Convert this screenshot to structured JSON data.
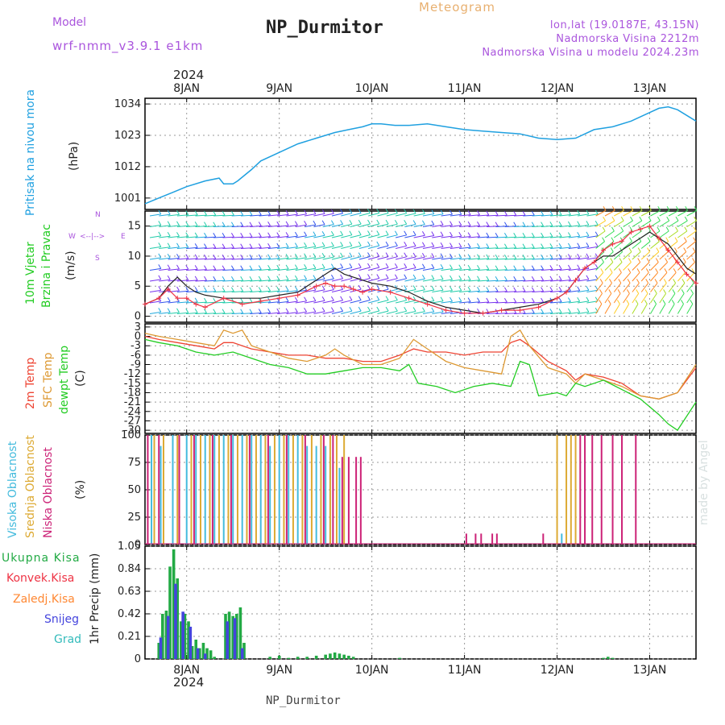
{
  "header": {
    "model_label": "Model",
    "model_name": "wrf-nmm_v3.9.1  e1km",
    "title": "NP_Durmitor",
    "meteogram_label": "Meteogram",
    "lonlat": "lon,lat (19.0187E, 43.15N)",
    "elevation": "Nadmorska Visina 2212m",
    "model_elevation": "Nadmorska Visina u modelu 2024.23m"
  },
  "footer": {
    "location": "NP_Durmitor",
    "credit": "made by Angel"
  },
  "colors": {
    "pressure": "#1fa0e0",
    "wind_speed": "#222222",
    "gust": "#ee3344",
    "t2m": "#ee4433",
    "sfc_temp": "#dd9933",
    "dewpt": "#22cc22",
    "cloud_high": "#44bbdd",
    "cloud_mid": "#ddaa33",
    "cloud_low": "#cc2277",
    "precip_total": "#22aa44",
    "precip_conv": "#ee3344",
    "precip_frz": "#ff8833",
    "precip_snow": "#4444dd",
    "precip_hail": "#33bbbb"
  },
  "chart_data": [
    {
      "type": "line",
      "panel": "pressure",
      "ylabel": [
        "Pritisak na nivou mora",
        "(hPa)"
      ],
      "yticks": [
        1001,
        1012,
        1023,
        1034
      ],
      "ylim": [
        997,
        1036
      ],
      "xlim": [
        7.55,
        13.5
      ],
      "xticks": [
        "8JAN",
        "9JAN",
        "10JAN",
        "11JAN",
        "12JAN",
        "13JAN"
      ],
      "xticks_pos": [
        8,
        9,
        10,
        11,
        12,
        13
      ],
      "year": "2024",
      "series": [
        {
          "x": [
            7.55,
            7.7,
            7.85,
            8.0,
            8.2,
            8.35,
            8.4,
            8.5,
            8.55,
            8.7,
            8.8,
            9.0,
            9.2,
            9.4,
            9.6,
            9.75,
            9.9,
            10.0,
            10.1,
            10.25,
            10.4,
            10.6,
            10.8,
            11.0,
            11.2,
            11.4,
            11.6,
            11.8,
            12.0,
            12.2,
            12.4,
            12.6,
            12.8,
            13.0,
            13.1,
            13.2,
            13.3,
            13.5
          ],
          "y": [
            999,
            1001,
            1003,
            1005,
            1007,
            1008,
            1006,
            1006,
            1007,
            1011,
            1014,
            1017,
            1020,
            1022,
            1024,
            1025,
            1026,
            1027,
            1027,
            1026.5,
            1026.5,
            1027,
            1026,
            1025,
            1024.5,
            1024,
            1023.5,
            1022,
            1021.5,
            1022,
            1025,
            1026,
            1028,
            1031,
            1032.5,
            1033,
            1032,
            1028
          ]
        }
      ]
    },
    {
      "type": "line",
      "panel": "wind",
      "ylabel": [
        "10m Vjetar",
        "Brzina i Pravac",
        "(m/s)"
      ],
      "compass": {
        "n": "N",
        "s": "S",
        "e": "E",
        "w": "W"
      },
      "yticks": [
        0,
        5,
        10,
        15
      ],
      "ylim": [
        -1,
        17.5
      ],
      "xlim": [
        7.55,
        13.5
      ],
      "xticks_pos": [
        8,
        9,
        10,
        11,
        12,
        13
      ],
      "series": [
        {
          "name": "speed",
          "x": [
            7.55,
            7.7,
            7.8,
            7.9,
            8.0,
            8.1,
            8.2,
            8.4,
            8.6,
            8.8,
            9.0,
            9.2,
            9.4,
            9.5,
            9.6,
            9.7,
            9.8,
            9.9,
            10.0,
            10.2,
            10.4,
            10.6,
            10.8,
            11.0,
            11.2,
            11.4,
            11.6,
            11.8,
            12.0,
            12.1,
            12.2,
            12.3,
            12.4,
            12.5,
            12.6,
            12.7,
            12.8,
            12.9,
            13.0,
            13.1,
            13.2,
            13.3,
            13.4,
            13.5
          ],
          "y": [
            2,
            3,
            5,
            6.5,
            5,
            4,
            3.5,
            3,
            3,
            3,
            3.5,
            4,
            6,
            7,
            8,
            7,
            6.5,
            6,
            5.5,
            5,
            4,
            2.5,
            1.5,
            1,
            0.5,
            1,
            1.5,
            2,
            3,
            4,
            6,
            8,
            9,
            10,
            10,
            11,
            12,
            13,
            14,
            13,
            12,
            10,
            8,
            7
          ]
        },
        {
          "name": "gust",
          "x": [
            7.55,
            7.7,
            7.8,
            7.9,
            8.0,
            8.1,
            8.2,
            8.4,
            8.6,
            8.8,
            9.0,
            9.2,
            9.4,
            9.5,
            9.6,
            9.7,
            9.8,
            9.9,
            10.0,
            10.2,
            10.4,
            10.6,
            10.8,
            11.0,
            11.2,
            11.4,
            11.6,
            11.8,
            12.0,
            12.1,
            12.2,
            12.3,
            12.4,
            12.5,
            12.6,
            12.7,
            12.8,
            12.9,
            13.0,
            13.1,
            13.2,
            13.3,
            13.4,
            13.5
          ],
          "y": [
            2,
            3,
            4.5,
            3,
            3,
            2,
            1.5,
            3,
            2,
            2.5,
            3,
            3.5,
            5,
            5.5,
            5,
            5,
            4.5,
            4,
            4.5,
            4,
            3,
            2,
            1,
            0.5,
            0.5,
            1,
            1,
            1.5,
            3,
            4,
            6,
            8,
            9,
            11,
            12,
            12.5,
            14,
            14.5,
            15,
            13,
            11,
            9,
            7,
            5.5
          ]
        }
      ]
    },
    {
      "type": "line",
      "panel": "temperature",
      "ylabel": [
        "2m Temp",
        "SFC Temp",
        "dewpt Temp",
        "(C)"
      ],
      "yticks": [
        3,
        0,
        -3,
        -6,
        -9,
        -12,
        -15,
        -18,
        -21,
        -24,
        -27,
        -30
      ],
      "ylim": [
        -31,
        4
      ],
      "xlim": [
        7.55,
        13.5
      ],
      "xticks_pos": [
        8,
        9,
        10,
        11,
        12,
        13
      ],
      "series": [
        {
          "name": "2m Temp",
          "x": [
            7.55,
            7.7,
            7.9,
            8.1,
            8.3,
            8.4,
            8.5,
            8.6,
            8.7,
            8.9,
            9.1,
            9.3,
            9.5,
            9.7,
            9.9,
            10.1,
            10.3,
            10.45,
            10.6,
            10.8,
            11.0,
            11.2,
            11.4,
            11.5,
            11.6,
            11.7,
            11.9,
            12.1,
            12.2,
            12.3,
            12.5,
            12.7,
            12.9,
            13.1,
            13.3,
            13.5
          ],
          "y": [
            0,
            -1,
            -2,
            -3,
            -4,
            -2,
            -2,
            -3,
            -4,
            -5,
            -6,
            -6,
            -7,
            -7,
            -8,
            -8,
            -6,
            -4,
            -5,
            -5,
            -6,
            -5,
            -5,
            -2,
            -1,
            -3,
            -8,
            -11,
            -14,
            -12,
            -13,
            -15,
            -19,
            -20,
            -18,
            -10
          ]
        },
        {
          "name": "SFC Temp",
          "x": [
            7.55,
            7.7,
            7.9,
            8.1,
            8.3,
            8.4,
            8.5,
            8.6,
            8.7,
            8.9,
            9.1,
            9.3,
            9.5,
            9.6,
            9.7,
            9.9,
            10.1,
            10.3,
            10.45,
            10.6,
            10.8,
            11.0,
            11.2,
            11.4,
            11.5,
            11.6,
            11.7,
            11.9,
            12.1,
            12.2,
            12.3,
            12.5,
            12.7,
            12.9,
            13.1,
            13.3,
            13.5
          ],
          "y": [
            1,
            0,
            -1,
            -2,
            -3,
            2,
            1,
            2,
            -3,
            -5,
            -7,
            -8,
            -6,
            -4,
            -6,
            -9,
            -9,
            -7,
            -1,
            -4,
            -8,
            -10,
            -11,
            -12,
            0,
            2,
            -3,
            -10,
            -12,
            -15,
            -12,
            -14,
            -16,
            -19,
            -20,
            -18,
            -9
          ]
        },
        {
          "name": "dewpt Temp",
          "x": [
            7.55,
            7.7,
            7.9,
            8.1,
            8.3,
            8.5,
            8.7,
            8.9,
            9.1,
            9.3,
            9.5,
            9.7,
            9.9,
            10.1,
            10.3,
            10.4,
            10.5,
            10.7,
            10.9,
            11.1,
            11.3,
            11.5,
            11.6,
            11.7,
            11.8,
            12.0,
            12.1,
            12.2,
            12.3,
            12.5,
            12.7,
            12.9,
            13.1,
            13.2,
            13.3,
            13.5
          ],
          "y": [
            -1,
            -2,
            -3,
            -5,
            -6,
            -5,
            -7,
            -9,
            -10,
            -12,
            -12,
            -11,
            -10,
            -10,
            -11,
            -9,
            -15,
            -16,
            -18,
            -16,
            -15,
            -16,
            -8,
            -9,
            -19,
            -18,
            -19,
            -15,
            -16,
            -14,
            -17,
            -20,
            -25,
            -28,
            -30,
            -21
          ]
        }
      ]
    },
    {
      "type": "bar",
      "panel": "clouds",
      "ylabel": [
        "Visoka Oblacnost",
        "Srednja Oblacnost",
        "Niska Oblacnost",
        "(%)"
      ],
      "yticks": [
        0,
        25,
        50,
        75,
        100
      ],
      "ylim": [
        0,
        100
      ],
      "xlim": [
        7.55,
        13.5
      ],
      "xticks_pos": [
        8,
        9,
        10,
        11,
        12,
        13
      ],
      "series": [
        {
          "name": "Visoka Oblacnost",
          "x": [
            7.62,
            7.72,
            7.85,
            8.0,
            8.1,
            8.2,
            8.3,
            8.4,
            8.5,
            8.6,
            8.7,
            8.8,
            8.9,
            9.0,
            9.1,
            9.2,
            9.3,
            9.4,
            9.5,
            9.55,
            9.65,
            12.05
          ],
          "y": [
            100,
            90,
            100,
            100,
            100,
            100,
            100,
            100,
            100,
            100,
            100,
            100,
            90,
            100,
            100,
            100,
            90,
            90,
            90,
            80,
            70,
            10
          ]
        },
        {
          "name": "Srednja Oblacnost",
          "x": [
            7.65,
            7.75,
            7.9,
            8.05,
            8.15,
            8.25,
            8.35,
            8.45,
            8.55,
            8.65,
            8.75,
            8.85,
            8.95,
            9.05,
            9.15,
            9.25,
            9.35,
            9.45,
            9.55,
            9.62,
            9.7,
            12.0,
            12.1,
            12.15,
            12.2
          ],
          "y": [
            100,
            100,
            100,
            100,
            100,
            100,
            100,
            100,
            100,
            100,
            100,
            100,
            100,
            100,
            100,
            100,
            100,
            100,
            100,
            100,
            100,
            100,
            100,
            100,
            100
          ]
        },
        {
          "name": "Niska Oblacnost",
          "x": [
            7.58,
            7.7,
            7.92,
            8.08,
            8.28,
            8.48,
            8.68,
            8.88,
            9.08,
            9.28,
            9.48,
            9.58,
            9.68,
            9.75,
            9.83,
            9.88,
            11.02,
            11.12,
            11.18,
            11.3,
            11.35,
            11.85,
            12.25,
            12.3,
            12.38,
            12.48,
            12.6,
            12.7,
            12.85
          ],
          "y": [
            100,
            100,
            100,
            100,
            100,
            100,
            100,
            100,
            100,
            100,
            100,
            100,
            80,
            80,
            80,
            80,
            10,
            10,
            10,
            10,
            10,
            10,
            100,
            100,
            100,
            100,
            100,
            100,
            100
          ]
        }
      ]
    },
    {
      "type": "bar",
      "panel": "precipitation",
      "ylabel": [
        "1hr Precip (mm)"
      ],
      "legend": [
        "Ukupna Kisa",
        "Konvek.Kisa",
        "Zaledj.Kisa",
        "Snijeg",
        "Grad"
      ],
      "yticks": [
        0,
        0.21,
        0.42,
        0.63,
        0.84,
        1.05
      ],
      "ylim": [
        0,
        1.05
      ],
      "xlim": [
        7.55,
        13.5
      ],
      "xticks_pos": [
        8,
        9,
        10,
        11,
        12,
        13
      ],
      "series": [
        {
          "name": "Ukupna Kisa",
          "x": [
            7.7,
            7.74,
            7.78,
            7.82,
            7.86,
            7.9,
            7.94,
            7.98,
            8.02,
            8.06,
            8.1,
            8.14,
            8.18,
            8.22,
            8.26,
            8.3,
            8.42,
            8.46,
            8.5,
            8.54,
            8.58,
            8.62,
            8.9,
            9.0,
            9.1,
            9.2,
            9.3,
            9.4,
            9.5,
            9.55,
            9.6,
            9.65,
            9.7,
            9.75,
            9.8,
            10.3,
            12.5,
            12.55,
            12.6
          ],
          "y": [
            0.15,
            0.42,
            0.45,
            0.86,
            1.02,
            0.75,
            0.35,
            0.42,
            0.35,
            0.12,
            0.18,
            0.1,
            0.15,
            0.1,
            0.08,
            0.02,
            0.42,
            0.44,
            0.4,
            0.42,
            0.48,
            0.15,
            0.02,
            0.03,
            0.01,
            0.02,
            0.02,
            0.03,
            0.04,
            0.05,
            0.06,
            0.05,
            0.04,
            0.03,
            0.02,
            0.01,
            0.01,
            0.02,
            0.01
          ]
        },
        {
          "name": "Snijeg",
          "x": [
            7.72,
            7.8,
            7.88,
            7.96,
            8.04,
            8.12,
            8.2,
            8.44,
            8.52,
            8.6
          ],
          "y": [
            0.2,
            0.4,
            0.7,
            0.44,
            0.3,
            0.1,
            0.05,
            0.35,
            0.38,
            0.1
          ]
        }
      ]
    }
  ]
}
